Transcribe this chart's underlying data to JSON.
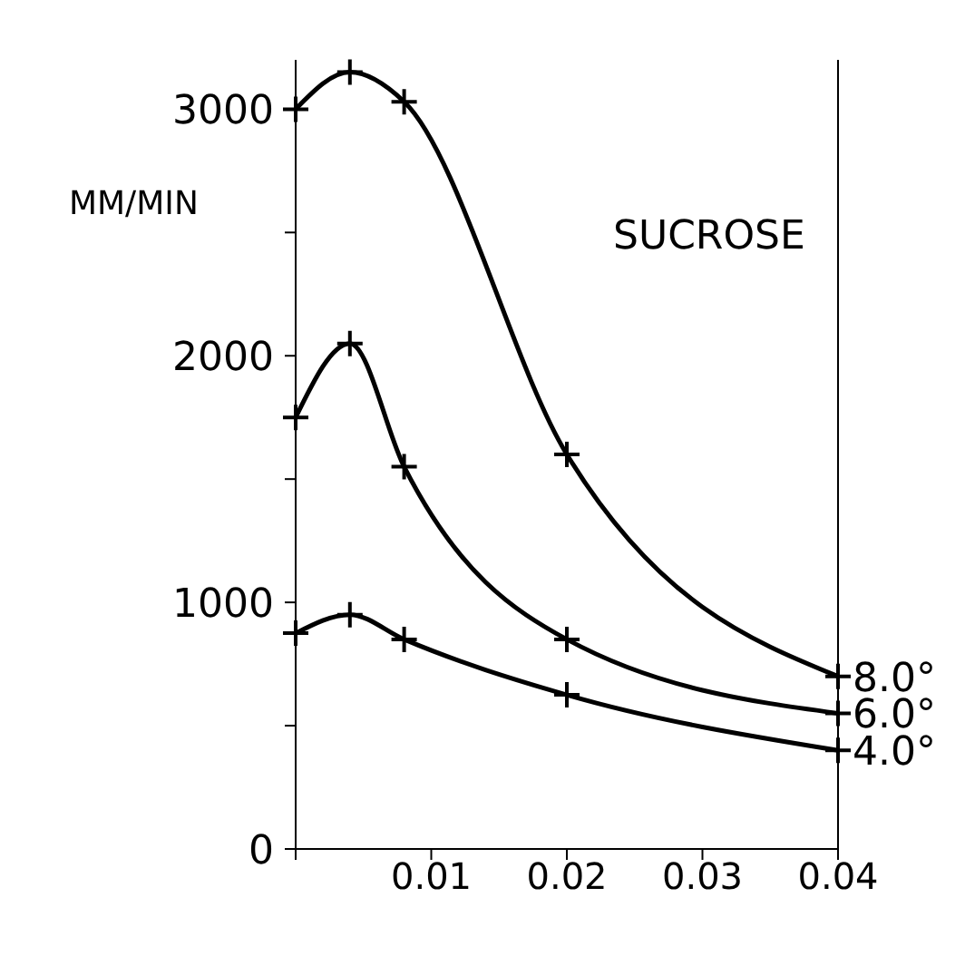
{
  "chart_data": {
    "type": "line",
    "title": "SUCROSE",
    "ylabel": "MM/MIN",
    "x": [
      0,
      0.004,
      0.008,
      0.02,
      0.04
    ],
    "series": [
      {
        "name": "8.0°",
        "color": "#000000",
        "values": [
          3000,
          3150,
          3030,
          1600,
          700
        ]
      },
      {
        "name": "6.0°",
        "color": "#000000",
        "values": [
          1750,
          2050,
          1550,
          850,
          550
        ]
      },
      {
        "name": "4.0°",
        "color": "#000000",
        "values": [
          875,
          950,
          850,
          625,
          400
        ]
      }
    ],
    "xlim": [
      0,
      0.04
    ],
    "xticks": [
      {
        "value": 0,
        "label": null
      },
      0.01,
      0.02,
      0.03,
      0.04
    ],
    "ylim": [
      0,
      3200
    ],
    "yticks": [
      0,
      {
        "value": 500,
        "label": null
      },
      1000,
      {
        "value": 1500,
        "label": null
      },
      2000,
      {
        "value": 2500,
        "label": null
      },
      3000
    ],
    "marker": "cross",
    "line_style": "solid",
    "grid": false,
    "legend": false
  }
}
